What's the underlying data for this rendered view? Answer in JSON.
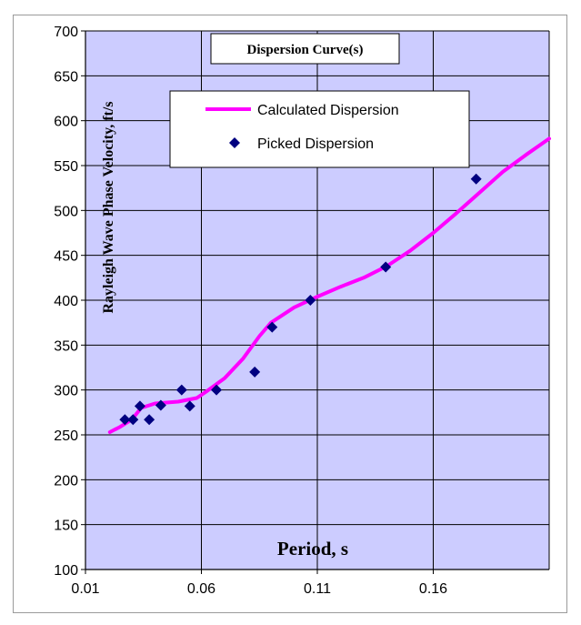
{
  "chart_data": {
    "type": "line",
    "title": "Dispersion Curve(s)",
    "xlabel": "Period, s",
    "ylabel": "Rayleigh Wave Phase Velocity, ft/s",
    "xlim": [
      0.01,
      0.21
    ],
    "ylim": [
      100,
      700
    ],
    "xticks": [
      "0.01",
      "0.06",
      "0.11",
      "0.16"
    ],
    "yticks": [
      "100",
      "150",
      "200",
      "250",
      "300",
      "350",
      "400",
      "450",
      "500",
      "550",
      "600",
      "650",
      "700"
    ],
    "grid": true,
    "legend_position": "upper-left",
    "plot_background": "#ccccff",
    "series": [
      {
        "name": "Calculated Dispersion",
        "kind": "line",
        "color": "#ff00ff",
        "x": [
          0.0205,
          0.025,
          0.03,
          0.034,
          0.04,
          0.05,
          0.058,
          0.062,
          0.07,
          0.078,
          0.085,
          0.09,
          0.1,
          0.11,
          0.12,
          0.13,
          0.14,
          0.15,
          0.16,
          0.17,
          0.18,
          0.19,
          0.2,
          0.21
        ],
        "y": [
          253,
          259,
          267,
          280,
          285,
          287,
          291,
          298,
          313,
          335,
          360,
          375,
          392,
          404,
          415,
          425,
          438,
          455,
          475,
          497,
          520,
          543,
          562,
          580
        ]
      },
      {
        "name": "Picked Dispersion",
        "kind": "scatter",
        "color": "#000080",
        "x": [
          0.027,
          0.0305,
          0.0335,
          0.0375,
          0.0425,
          0.0515,
          0.055,
          0.0665,
          0.083,
          0.0905,
          0.107,
          0.1395,
          0.1785
        ],
        "y": [
          267,
          267,
          282,
          267,
          283,
          300,
          282,
          300,
          320,
          370,
          400,
          437,
          535
        ]
      }
    ]
  }
}
